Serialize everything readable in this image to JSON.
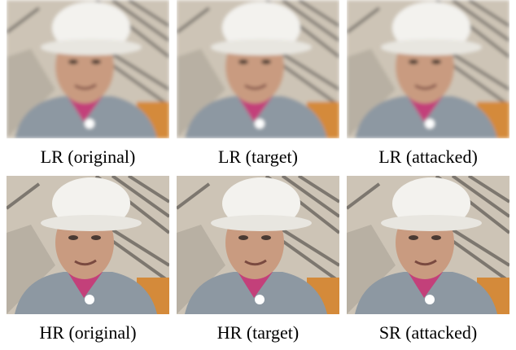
{
  "panels": [
    {
      "caption": "LR (original)"
    },
    {
      "caption": "LR (target)"
    },
    {
      "caption": "LR (attacked)"
    },
    {
      "caption": "HR (original)"
    },
    {
      "caption": "HR (target)"
    },
    {
      "caption": "SR (attacked)"
    }
  ]
}
